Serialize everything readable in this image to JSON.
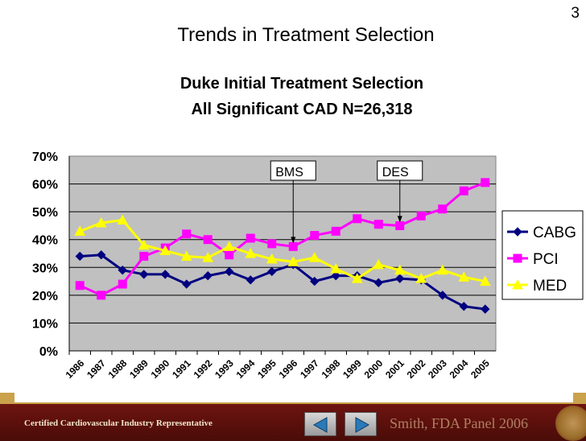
{
  "slide": {
    "number": "3",
    "title": "Trends in Treatment Selection"
  },
  "footer": {
    "left_text": "Certified Cardiovascular Industry Representative",
    "right_text": "Smith, FDA Panel 2006",
    "prev_icon": "left-triangle",
    "next_icon": "right-triangle"
  },
  "chart_data": {
    "type": "line",
    "title": "Duke Initial Treatment Selection",
    "subtitle": "All Significant CAD N=26,318",
    "x": [
      "1986",
      "1987",
      "1988",
      "1989",
      "1990",
      "1991",
      "1992",
      "1993",
      "1994",
      "1995",
      "1996",
      "1997",
      "1998",
      "1999",
      "2000",
      "2001",
      "2002",
      "2003",
      "2004",
      "2005"
    ],
    "ylim": [
      0,
      70
    ],
    "yticks": [
      "0%",
      "10%",
      "20%",
      "30%",
      "40%",
      "50%",
      "60%",
      "70%"
    ],
    "grid": true,
    "legend_position": "right",
    "plot_background": "#c0c0c0",
    "series": [
      {
        "name": "CABG",
        "color": "#000080",
        "marker": "diamond",
        "values": [
          34,
          34.5,
          29,
          27.5,
          27.5,
          24,
          27,
          28.5,
          25.5,
          28.5,
          31,
          25,
          27,
          27,
          24.5,
          26,
          25.5,
          20,
          16,
          15
        ]
      },
      {
        "name": "PCI",
        "color": "#ff00ff",
        "marker": "square",
        "values": [
          23.5,
          20,
          24,
          34,
          37,
          42,
          40,
          34.5,
          40.5,
          38.5,
          37.5,
          41.5,
          43,
          47.5,
          45.5,
          45,
          48.5,
          51,
          57.5,
          60.5
        ]
      },
      {
        "name": "MED",
        "color": "#ffff00",
        "marker": "triangle",
        "values": [
          43,
          46,
          47,
          38,
          36,
          34,
          33.5,
          37.5,
          35,
          33,
          32,
          33.5,
          29.5,
          26,
          31,
          29,
          26,
          29,
          26.5,
          25
        ]
      }
    ],
    "annotations": [
      {
        "text": "BMS",
        "x": "1996"
      },
      {
        "text": "DES",
        "x": "2001"
      }
    ]
  }
}
